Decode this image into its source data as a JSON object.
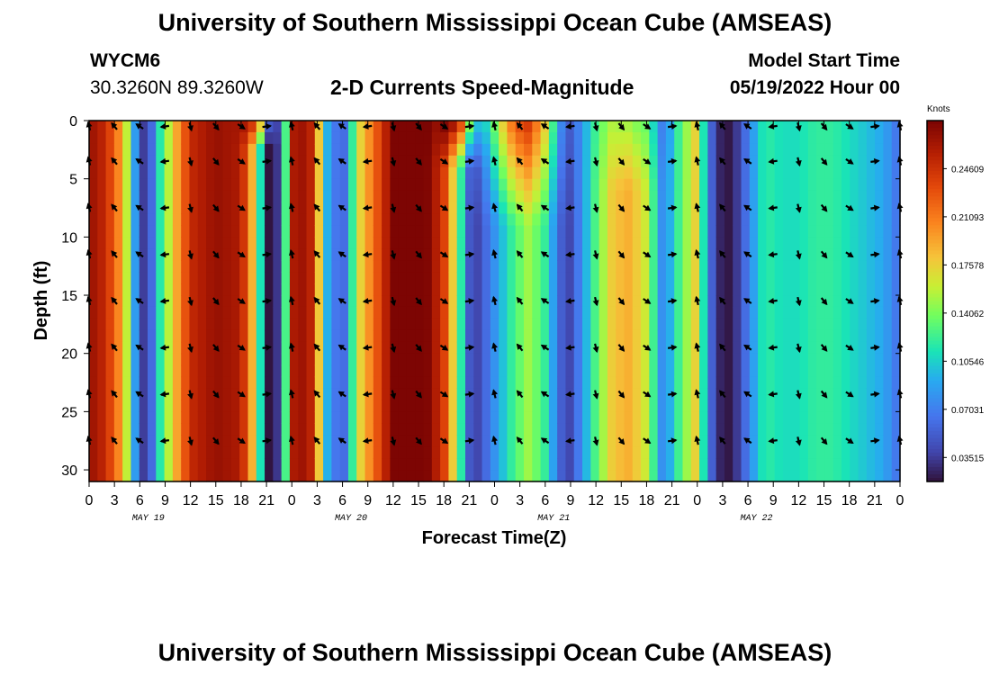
{
  "header": {
    "title": "University of Southern Mississippi Ocean Cube (AMSEAS)",
    "station": "WYCM6",
    "location": "30.3260N  89.3260W",
    "product": "2-D Currents Speed-Magnitude",
    "model_start_label": "Model Start Time",
    "model_start_value": "05/19/2022 Hour 00"
  },
  "footer": {
    "title": "University of Southern Mississippi Ocean Cube (AMSEAS)"
  },
  "chart_data": {
    "type": "heatmap",
    "title": "2-D Currents Speed-Magnitude",
    "xlabel": "Forecast Time(Z)",
    "ylabel": "Depth (ft)",
    "x_tick_labels": [
      "0",
      "3",
      "6",
      "9",
      "12",
      "15",
      "18",
      "21",
      "0",
      "3",
      "6",
      "9",
      "12",
      "15",
      "18",
      "21",
      "0",
      "3",
      "6",
      "9",
      "12",
      "15",
      "18",
      "21",
      "0",
      "3",
      "6",
      "9",
      "12",
      "15",
      "18",
      "21",
      "0"
    ],
    "x_range_hours": [
      0,
      96
    ],
    "date_labels": [
      {
        "label": "MAY 19",
        "hour": 7
      },
      {
        "label": "MAY 20",
        "hour": 31
      },
      {
        "label": "MAY 21",
        "hour": 55
      },
      {
        "label": "MAY 22",
        "hour": 79
      }
    ],
    "y_ticks": [
      0,
      5,
      10,
      15,
      20,
      25,
      30
    ],
    "y_range_ft": [
      0,
      31
    ],
    "colorbar": {
      "title": "Knots",
      "range": [
        0.0176,
        0.2812
      ],
      "tick_labels": [
        "0.24609",
        "0.21093",
        "0.17578",
        "0.14062",
        "0.10546",
        "0.07031",
        "0.03515"
      ],
      "tick_values": [
        0.24609,
        0.21093,
        0.17578,
        0.14062,
        0.10546,
        0.07031,
        0.03515
      ]
    },
    "speed_profile": {
      "hours": [
        0,
        2,
        4,
        5,
        6,
        7,
        8,
        10,
        12,
        15,
        18,
        20,
        21,
        22,
        23,
        24,
        26,
        27,
        28,
        29,
        30,
        32,
        36,
        40,
        42,
        44,
        45,
        46,
        48,
        50,
        52,
        54,
        56,
        57,
        58,
        59,
        60,
        62,
        64,
        66,
        68,
        70,
        72,
        73,
        74,
        75,
        76,
        77,
        78,
        80,
        82,
        84,
        86,
        88,
        90,
        92,
        94,
        96
      ],
      "speed_knots": [
        0.27,
        0.25,
        0.19,
        0.12,
        0.04,
        0.03,
        0.1,
        0.18,
        0.25,
        0.27,
        0.26,
        0.15,
        0.02,
        0.015,
        0.08,
        0.26,
        0.27,
        0.2,
        0.1,
        0.07,
        0.05,
        0.17,
        0.28,
        0.28,
        0.24,
        0.12,
        0.05,
        0.04,
        0.08,
        0.12,
        0.15,
        0.12,
        0.05,
        0.04,
        0.07,
        0.1,
        0.13,
        0.18,
        0.19,
        0.16,
        0.07,
        0.13,
        0.18,
        0.09,
        0.04,
        0.02,
        0.02,
        0.04,
        0.07,
        0.12,
        0.11,
        0.11,
        0.12,
        0.12,
        0.11,
        0.1,
        0.09,
        0.06
      ],
      "surface_boost": [
        {
          "hour": 20,
          "width": 1.5,
          "depth_ft": 2.5,
          "delta": 0.08
        },
        {
          "hour": 44,
          "width": 2,
          "depth_ft": 4,
          "delta": 0.12
        },
        {
          "hour": 51,
          "width": 4,
          "depth_ft": 9,
          "delta": 0.1
        },
        {
          "hour": 64,
          "width": 3,
          "depth_ft": 6,
          "delta": -0.04
        }
      ]
    },
    "vector_depths_ft": [
      0.5,
      3.5,
      7.5,
      11.5,
      15.5,
      19.5,
      23.5,
      27.5
    ]
  }
}
